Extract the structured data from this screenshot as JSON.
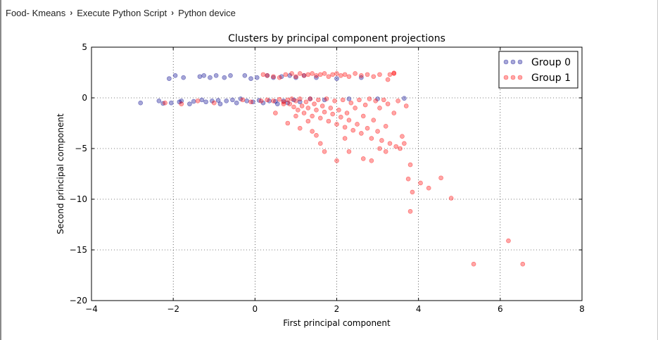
{
  "breadcrumb": {
    "items": [
      "Food- Kmeans",
      "Execute Python Script",
      "Python device"
    ],
    "separator": "›"
  },
  "chart_data": {
    "type": "scatter",
    "title": "Clusters by principal component projections",
    "xlabel": "First principal component",
    "ylabel": "Second principal component",
    "xlim": [
      -4,
      8
    ],
    "ylim": [
      -20,
      5
    ],
    "xticks": [
      "−4",
      "−2",
      "0",
      "2",
      "4",
      "6",
      "8"
    ],
    "yticks": [
      "5",
      "0",
      "−5",
      "−10",
      "−15",
      "−20"
    ],
    "grid": true,
    "legend_position": "top-right",
    "series": [
      {
        "name": "Group 0",
        "color": "#00008b",
        "points": [
          [
            -2.8,
            -0.5
          ],
          [
            -2.35,
            -0.3
          ],
          [
            -2.25,
            -0.55
          ],
          [
            -2.1,
            1.9
          ],
          [
            -2.05,
            -0.5
          ],
          [
            -1.95,
            2.2
          ],
          [
            -1.85,
            -0.4
          ],
          [
            -1.8,
            -0.3
          ],
          [
            -1.75,
            2.0
          ],
          [
            -1.6,
            -0.6
          ],
          [
            -1.5,
            -0.35
          ],
          [
            -1.35,
            2.1
          ],
          [
            -1.3,
            -0.2
          ],
          [
            -1.25,
            2.2
          ],
          [
            -1.2,
            -0.4
          ],
          [
            -1.1,
            2.0
          ],
          [
            -1.05,
            -0.3
          ],
          [
            -0.95,
            2.2
          ],
          [
            -0.9,
            -0.25
          ],
          [
            -0.85,
            -0.6
          ],
          [
            -0.75,
            2.0
          ],
          [
            -0.7,
            -0.3
          ],
          [
            -0.6,
            2.2
          ],
          [
            -0.55,
            -0.2
          ],
          [
            -0.45,
            -0.5
          ],
          [
            -0.35,
            -0.1
          ],
          [
            -0.25,
            2.2
          ],
          [
            -0.2,
            -0.3
          ],
          [
            -0.1,
            1.9
          ],
          [
            -0.05,
            -0.4
          ],
          [
            0.05,
            2.0
          ],
          [
            0.1,
            -0.25
          ],
          [
            0.2,
            -0.5
          ],
          [
            0.3,
            2.2
          ],
          [
            0.35,
            -0.3
          ],
          [
            0.45,
            2.0
          ],
          [
            0.5,
            -0.35
          ],
          [
            0.55,
            -0.6
          ],
          [
            0.65,
            2.1
          ],
          [
            0.7,
            -0.3
          ],
          [
            0.8,
            -0.5
          ],
          [
            0.85,
            2.2
          ],
          [
            0.95,
            -0.2
          ],
          [
            1.0,
            2.0
          ],
          [
            1.1,
            -0.4
          ],
          [
            1.2,
            2.2
          ],
          [
            1.35,
            -0.1
          ],
          [
            1.5,
            2.0
          ],
          [
            1.7,
            -0.2
          ],
          [
            2.0,
            1.9
          ],
          [
            2.3,
            -0.1
          ],
          [
            2.6,
            2.0
          ],
          [
            3.0,
            -0.1
          ],
          [
            3.65,
            -0.05
          ]
        ]
      },
      {
        "name": "Group 1",
        "color": "#ff0000",
        "points": [
          [
            -2.2,
            -0.5
          ],
          [
            -1.8,
            -0.6
          ],
          [
            -1.4,
            -0.3
          ],
          [
            -1.0,
            -0.5
          ],
          [
            -0.3,
            -0.2
          ],
          [
            -0.1,
            -0.4
          ],
          [
            0.15,
            -0.3
          ],
          [
            0.2,
            2.3
          ],
          [
            0.3,
            2.2
          ],
          [
            0.45,
            2.1
          ],
          [
            0.6,
            2.0
          ],
          [
            0.75,
            2.3
          ],
          [
            0.9,
            2.4
          ],
          [
            1.0,
            2.1
          ],
          [
            1.1,
            2.4
          ],
          [
            1.2,
            2.2
          ],
          [
            1.3,
            2.3
          ],
          [
            1.4,
            2.4
          ],
          [
            1.5,
            2.2
          ],
          [
            1.6,
            2.3
          ],
          [
            1.7,
            2.4
          ],
          [
            1.8,
            2.1
          ],
          [
            1.9,
            2.3
          ],
          [
            2.0,
            2.4
          ],
          [
            2.1,
            2.2
          ],
          [
            2.2,
            2.3
          ],
          [
            2.3,
            2.1
          ],
          [
            2.45,
            2.4
          ],
          [
            2.6,
            2.2
          ],
          [
            2.75,
            2.3
          ],
          [
            2.9,
            2.1
          ],
          [
            3.05,
            2.3
          ],
          [
            3.3,
            2.3
          ],
          [
            3.4,
            2.4
          ],
          [
            0.3,
            -0.2
          ],
          [
            0.45,
            -0.3
          ],
          [
            0.6,
            -0.15
          ],
          [
            0.7,
            -0.4
          ],
          [
            0.8,
            -0.2
          ],
          [
            0.85,
            -0.6
          ],
          [
            0.9,
            -0.1
          ],
          [
            0.95,
            -0.9
          ],
          [
            1.0,
            -0.3
          ],
          [
            1.05,
            -1.2
          ],
          [
            1.1,
            -0.1
          ],
          [
            1.15,
            -0.8
          ],
          [
            1.2,
            -1.5
          ],
          [
            1.25,
            -0.4
          ],
          [
            1.3,
            -1.0
          ],
          [
            1.35,
            -0.1
          ],
          [
            1.4,
            -1.8
          ],
          [
            1.45,
            -0.6
          ],
          [
            1.5,
            -1.2
          ],
          [
            1.55,
            -0.2
          ],
          [
            1.6,
            -2.0
          ],
          [
            1.65,
            -0.8
          ],
          [
            1.7,
            -1.4
          ],
          [
            1.75,
            -0.1
          ],
          [
            1.8,
            -2.3
          ],
          [
            1.85,
            -1.0
          ],
          [
            1.9,
            -1.6
          ],
          [
            1.95,
            -0.3
          ],
          [
            2.0,
            -2.6
          ],
          [
            2.05,
            -1.2
          ],
          [
            2.1,
            -1.9
          ],
          [
            2.15,
            -0.2
          ],
          [
            2.2,
            -2.9
          ],
          [
            2.25,
            -1.5
          ],
          [
            2.3,
            -2.2
          ],
          [
            2.35,
            -0.5
          ],
          [
            2.4,
            -3.2
          ],
          [
            2.45,
            -1.0
          ],
          [
            2.5,
            -2.6
          ],
          [
            2.55,
            -0.2
          ],
          [
            2.6,
            -3.5
          ],
          [
            2.65,
            -1.8
          ],
          [
            2.7,
            -0.7
          ],
          [
            2.75,
            -3.0
          ],
          [
            2.8,
            -0.1
          ],
          [
            2.85,
            -4.0
          ],
          [
            2.9,
            -2.2
          ],
          [
            2.95,
            -0.3
          ],
          [
            3.0,
            -3.3
          ],
          [
            3.05,
            -1.0
          ],
          [
            3.1,
            -4.2
          ],
          [
            3.15,
            -0.2
          ],
          [
            3.2,
            -2.8
          ],
          [
            3.25,
            -0.6
          ],
          [
            3.3,
            -4.5
          ],
          [
            3.4,
            -1.5
          ],
          [
            3.5,
            -0.3
          ],
          [
            3.55,
            -5.0
          ],
          [
            3.6,
            -3.8
          ],
          [
            3.65,
            -4.5
          ],
          [
            3.7,
            -0.8
          ],
          [
            3.05,
            -5.0
          ],
          [
            3.2,
            -5.3
          ],
          [
            3.45,
            -4.8
          ],
          [
            2.65,
            -6.0
          ],
          [
            2.3,
            -5.3
          ],
          [
            1.7,
            -5.3
          ],
          [
            2.0,
            -6.2
          ],
          [
            2.85,
            -6.2
          ],
          [
            1.4,
            -3.3
          ],
          [
            1.6,
            -4.5
          ],
          [
            2.2,
            -4.0
          ],
          [
            0.7,
            -0.6
          ],
          [
            0.5,
            -1.5
          ],
          [
            0.8,
            -2.5
          ],
          [
            1.0,
            -1.8
          ],
          [
            1.1,
            -3.0
          ],
          [
            1.3,
            -2.3
          ],
          [
            1.5,
            -3.7
          ],
          [
            3.4,
            2.45
          ],
          [
            3.25,
            1.8
          ],
          [
            3.8,
            -6.6
          ],
          [
            3.75,
            -8.0
          ],
          [
            3.85,
            -9.3
          ],
          [
            4.05,
            -8.4
          ],
          [
            4.25,
            -8.9
          ],
          [
            4.55,
            -7.9
          ],
          [
            3.8,
            -11.2
          ],
          [
            4.8,
            -9.9
          ],
          [
            6.2,
            -14.1
          ],
          [
            5.35,
            -16.4
          ],
          [
            6.55,
            -16.4
          ]
        ]
      }
    ]
  }
}
